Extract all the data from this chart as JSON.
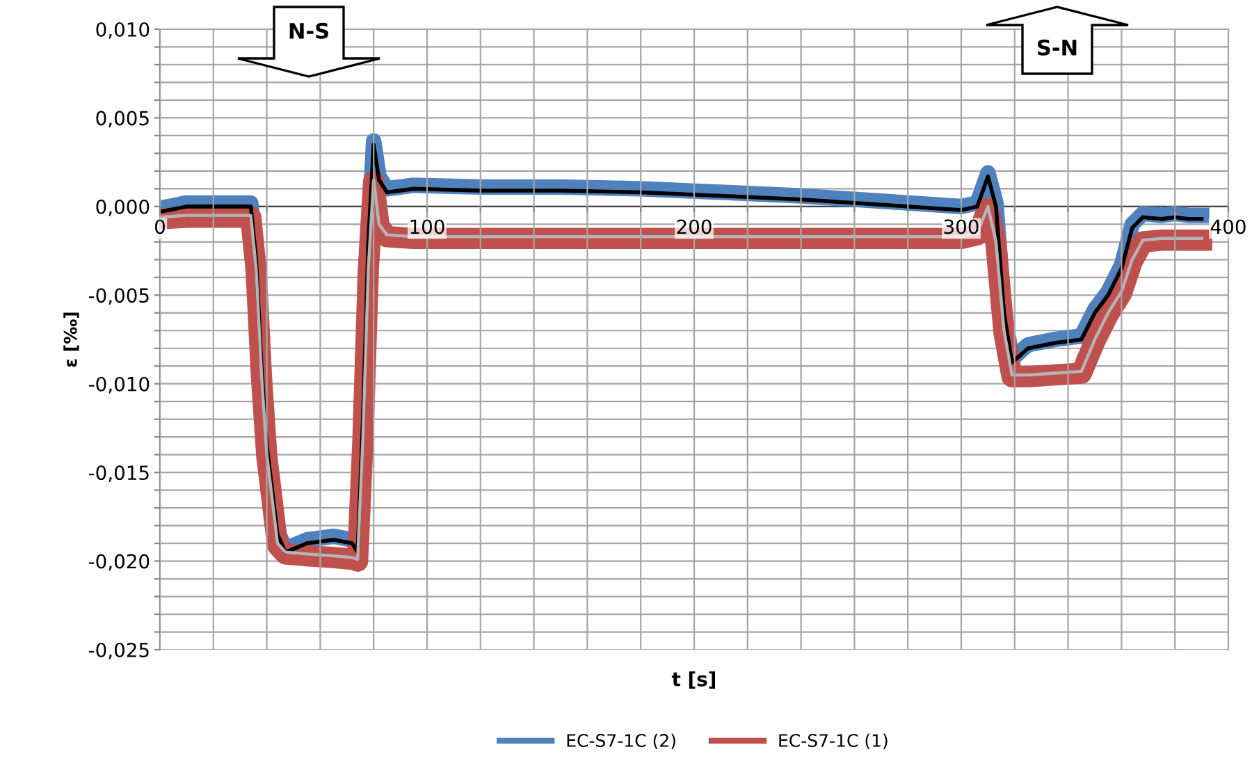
{
  "chart_data": {
    "type": "line",
    "xlabel": "t [s]",
    "ylabel": "ε [‰]",
    "annotations": [
      "N-S",
      "S-N"
    ],
    "x": [
      0,
      10,
      20,
      30,
      34,
      36,
      38,
      40,
      42,
      44,
      47,
      55,
      65,
      72,
      74,
      76,
      78,
      80,
      82,
      85,
      95,
      120,
      150,
      180,
      210,
      240,
      270,
      300,
      306,
      310,
      313,
      316,
      319,
      325,
      335,
      345,
      350,
      355,
      360,
      364,
      368,
      375,
      380,
      385,
      390
    ],
    "series": [
      {
        "name": "EC-S7-1C (2)",
        "color": "#4f81bd",
        "values": [
          -0.0001,
          0.0002,
          0.0002,
          0.0002,
          0.0002,
          -0.0028,
          -0.0088,
          -0.0133,
          -0.0158,
          -0.0183,
          -0.0193,
          -0.0188,
          -0.0186,
          -0.0188,
          -0.0193,
          -0.0118,
          -0.0018,
          0.0037,
          0.0017,
          0.001,
          0.0012,
          0.0011,
          0.0011,
          0.001,
          0.0008,
          0.0006,
          0.0003,
          0.0,
          0.0002,
          0.0019,
          0.0002,
          -0.0058,
          -0.0086,
          -0.0078,
          -0.0075,
          -0.0073,
          -0.0058,
          -0.0048,
          -0.0033,
          -0.001,
          -0.0004,
          -0.0005,
          -0.0004,
          -0.0005,
          -0.0005
        ]
      },
      {
        "name": "EC-S7-1C (1)",
        "color": "#c0504d",
        "values": [
          -0.0007,
          -0.0006,
          -0.0006,
          -0.0006,
          -0.0006,
          -0.0036,
          -0.0096,
          -0.0141,
          -0.0166,
          -0.0191,
          -0.0196,
          -0.0197,
          -0.0198,
          -0.0199,
          -0.02,
          -0.0131,
          -0.0036,
          0.0014,
          -0.0011,
          -0.0017,
          -0.0018,
          -0.0018,
          -0.0018,
          -0.0018,
          -0.0018,
          -0.0018,
          -0.0018,
          -0.0018,
          -0.0016,
          -0.0001,
          -0.0021,
          -0.0071,
          -0.0096,
          -0.0096,
          -0.0095,
          -0.0094,
          -0.0076,
          -0.0061,
          -0.0049,
          -0.0031,
          -0.002,
          -0.0019,
          -0.0019,
          -0.0019,
          -0.0019
        ]
      },
      {
        "color": "#000000",
        "values": [
          -0.0003,
          0.0,
          0.0,
          0.0,
          0.0,
          -0.003,
          -0.009,
          -0.0135,
          -0.016,
          -0.0185,
          -0.0195,
          -0.019,
          -0.0188,
          -0.019,
          -0.0195,
          -0.012,
          -0.002,
          0.0035,
          0.0015,
          0.0008,
          0.001,
          0.0009,
          0.0009,
          0.0008,
          0.0006,
          0.0004,
          0.0001,
          -0.0002,
          0.0,
          0.0017,
          0.0,
          -0.006,
          -0.0088,
          -0.008,
          -0.0077,
          -0.0075,
          -0.006,
          -0.005,
          -0.0035,
          -0.0012,
          -0.0006,
          -0.0007,
          -0.0006,
          -0.0007,
          -0.0007
        ]
      },
      {
        "color": "#b4b4b4",
        "values": [
          -0.0006,
          -0.0005,
          -0.0005,
          -0.0005,
          -0.0005,
          -0.0035,
          -0.0095,
          -0.014,
          -0.0165,
          -0.019,
          -0.0195,
          -0.0196,
          -0.0197,
          -0.0198,
          -0.0199,
          -0.013,
          -0.0035,
          0.0015,
          -0.001,
          -0.0016,
          -0.0017,
          -0.0017,
          -0.0017,
          -0.0017,
          -0.0017,
          -0.0017,
          -0.0017,
          -0.0017,
          -0.0015,
          0.0,
          -0.002,
          -0.007,
          -0.0095,
          -0.0095,
          -0.0094,
          -0.0093,
          -0.0075,
          -0.006,
          -0.0048,
          -0.003,
          -0.0019,
          -0.0018,
          -0.0018,
          -0.0018,
          -0.0018
        ]
      }
    ],
    "xlim": [
      0,
      400
    ],
    "xticks": [
      0,
      {
        "value": 20,
        "label": null
      },
      {
        "value": 40,
        "label": null
      },
      {
        "value": 60,
        "label": null
      },
      {
        "value": 80,
        "label": null
      },
      100,
      {
        "value": 120,
        "label": null
      },
      {
        "value": 140,
        "label": null
      },
      {
        "value": 160,
        "label": null
      },
      {
        "value": 180,
        "label": null
      },
      200,
      {
        "value": 220,
        "label": null
      },
      {
        "value": 240,
        "label": null
      },
      {
        "value": 260,
        "label": null
      },
      {
        "value": 280,
        "label": null
      },
      300,
      {
        "value": 320,
        "label": null
      },
      {
        "value": 340,
        "label": null
      },
      {
        "value": 360,
        "label": null
      },
      {
        "value": 380,
        "label": null
      },
      400
    ],
    "ylim": [
      -0.025,
      0.01
    ],
    "yticks": [
      {
        "value": -0.025,
        "label": "-0,025"
      },
      {
        "value": -0.024,
        "label": null
      },
      {
        "value": -0.023,
        "label": null
      },
      {
        "value": -0.022,
        "label": null
      },
      {
        "value": -0.021,
        "label": null
      },
      {
        "value": -0.02,
        "label": "-0,020"
      },
      {
        "value": -0.019,
        "label": null
      },
      {
        "value": -0.018,
        "label": null
      },
      {
        "value": -0.017,
        "label": null
      },
      {
        "value": -0.016,
        "label": null
      },
      {
        "value": -0.015,
        "label": "-0,015"
      },
      {
        "value": -0.014,
        "label": null
      },
      {
        "value": -0.013,
        "label": null
      },
      {
        "value": -0.012,
        "label": null
      },
      {
        "value": -0.011,
        "label": null
      },
      {
        "value": -0.01,
        "label": "-0,010"
      },
      {
        "value": -0.009,
        "label": null
      },
      {
        "value": -0.008,
        "label": null
      },
      {
        "value": -0.007,
        "label": null
      },
      {
        "value": -0.006,
        "label": null
      },
      {
        "value": -0.005,
        "label": "-0,005"
      },
      {
        "value": -0.004,
        "label": null
      },
      {
        "value": -0.003,
        "label": null
      },
      {
        "value": -0.002,
        "label": null
      },
      {
        "value": -0.001,
        "label": null
      },
      {
        "value": 0,
        "label": "0,000"
      },
      {
        "value": 0.001,
        "label": null
      },
      {
        "value": 0.002,
        "label": null
      },
      {
        "value": 0.003,
        "label": null
      },
      {
        "value": 0.004,
        "label": null
      },
      {
        "value": 0.005,
        "label": "0,005"
      },
      {
        "value": 0.006,
        "label": null
      },
      {
        "value": 0.007,
        "label": null
      },
      {
        "value": 0.008,
        "label": null
      },
      {
        "value": 0.009,
        "label": null
      },
      {
        "value": 0.01,
        "label": "0,010"
      }
    ],
    "grid": true,
    "legend": "bottom",
    "line_style": "solid",
    "marker": "none"
  }
}
